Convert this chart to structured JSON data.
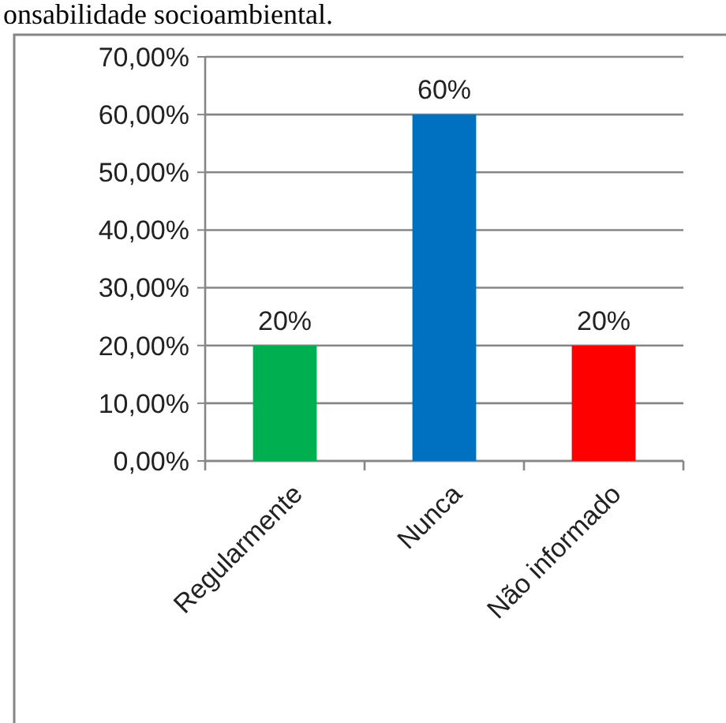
{
  "chart_data": {
    "type": "bar",
    "annotations": [
      "onsabilidade socioambiental."
    ],
    "categories": [
      "Regularmente",
      "Nunca",
      "Não informado"
    ],
    "values": [
      20,
      60,
      20
    ],
    "colors": [
      "#00b050",
      "#0070c0",
      "#ff0000"
    ],
    "value_labels": [
      "20%",
      "60%",
      "20%"
    ],
    "ylim": [
      0,
      70
    ],
    "yticks": [
      {
        "value": 0,
        "label": "0,00%"
      },
      {
        "value": 10,
        "label": "10,00%"
      },
      {
        "value": 20,
        "label": "20,00%"
      },
      {
        "value": 30,
        "label": "30,00%"
      },
      {
        "value": 40,
        "label": "40,00%"
      },
      {
        "value": 50,
        "label": "50,00%"
      },
      {
        "value": 60,
        "label": "60,00%"
      },
      {
        "value": 70,
        "label": "70,00%"
      }
    ],
    "grid": "y"
  }
}
